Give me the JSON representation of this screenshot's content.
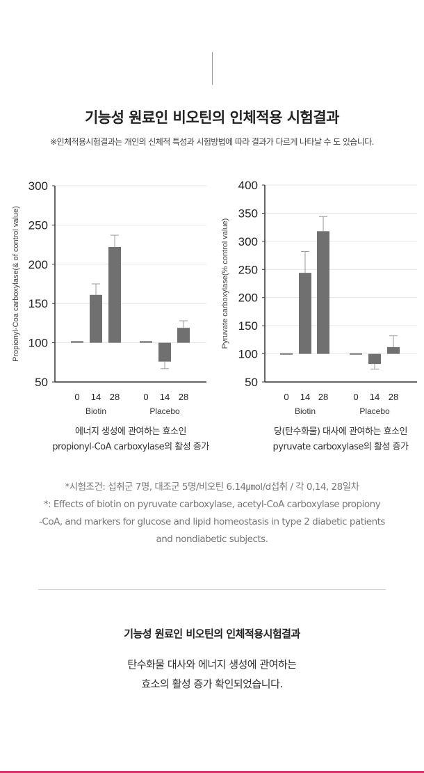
{
  "header": {
    "title": "기능성 원료인 비오틴의 인체적용 시험결과",
    "subtitle": "※인체적용시험결과는 개인의 신체적 특성과 시험방법에 따라 결과가 다르게 나타날 수 도 있습니다."
  },
  "chart_data": [
    {
      "type": "bar",
      "ylabel": "Propionyl-Coa carboxylase(& of control value)",
      "ylim": [
        50,
        300
      ],
      "yticks": [
        "50",
        "100",
        "150",
        "200",
        "250",
        "300"
      ],
      "baseline": 100,
      "grid": true,
      "groups": [
        "Biotin",
        "Placebo"
      ],
      "categories": [
        "0",
        "14",
        "28"
      ],
      "series": [
        {
          "name": "Biotin",
          "values": [
            102,
            161,
            222
          ],
          "errors": [
            102,
            175,
            237
          ]
        },
        {
          "name": "Placebo",
          "values": [
            102,
            76,
            119
          ],
          "errors": [
            102,
            67,
            128
          ]
        }
      ],
      "caption": [
        "에너지 생성에 관여하는 효소인",
        "propionyl-CoA carboxylase의 활성 증가"
      ]
    },
    {
      "type": "bar",
      "ylabel": "Pyruvate carboxylase(% control value)",
      "ylim": [
        50,
        400
      ],
      "yticks": [
        "50",
        "100",
        "150",
        "200",
        "250",
        "300",
        "350",
        "400"
      ],
      "baseline": 100,
      "grid": true,
      "groups": [
        "Biotin",
        "Placebo"
      ],
      "categories": [
        "0",
        "14",
        "28"
      ],
      "series": [
        {
          "name": "Biotin",
          "values": [
            101,
            244,
            318
          ],
          "errors": [
            101,
            282,
            344
          ]
        },
        {
          "name": "Placebo",
          "values": [
            101,
            82,
            112
          ],
          "errors": [
            101,
            73,
            132
          ]
        }
      ],
      "caption": [
        "당(탄수화물) 대사에 관여하는 효소인",
        "pyruvate carboxylase의 활성 증가"
      ]
    }
  ],
  "notes": [
    "*시험조건: 섭취군 7명, 대조군 5명/비오틴 6.14㎛ol/d섭취 / 각 0,14, 28일차",
    "*: Effects of biotin on pyruvate carboxylase, acetyl-CoA carboxylase propiony",
    "-CoA, and markers for glucose and lipid homeostasis in type 2 diabetic patients",
    "and nondiabetic subjects."
  ],
  "summary": {
    "title": "기능성 원료인 비오틴의 인체적용시험결과",
    "lines": [
      "탄수화물 대사와 에너지 생성에 관여하는",
      "효소의 활성 증가 확인되었습니다."
    ]
  },
  "colors": {
    "bar": "#707070",
    "accent": "#e0336e",
    "grid": "#e6e6e6"
  }
}
